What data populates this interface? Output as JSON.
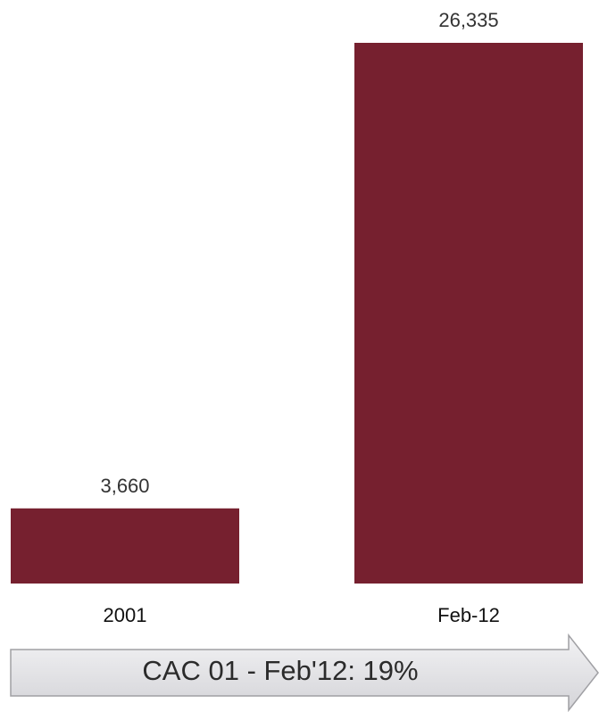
{
  "chart_data": {
    "type": "bar",
    "categories": [
      "2001",
      "Feb-12"
    ],
    "values": [
      3660,
      26335
    ],
    "value_labels": [
      "3,660",
      "26,335"
    ],
    "title": "",
    "xlabel": "",
    "ylabel": "",
    "ylim": [
      0,
      26335
    ],
    "grid": false,
    "legend": "none",
    "bar_color": "#76202f"
  },
  "annotation": {
    "cagr_label": "CAC 01 - Feb'12:  19%"
  },
  "colors": {
    "bar": "#76202f",
    "arrow_fill": "#e3e3e6",
    "arrow_border": "#a0a0a4"
  }
}
